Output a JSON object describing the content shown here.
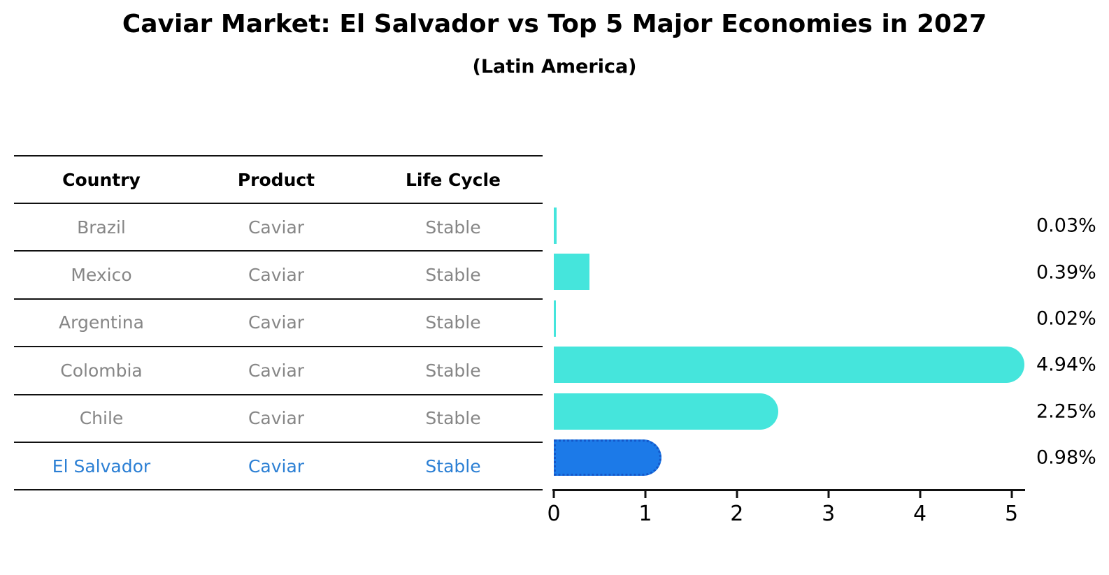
{
  "title": "Caviar Market: El Salvador vs Top 5 Major Economies in 2027",
  "subtitle": "(Latin America)",
  "table": {
    "headers": [
      "Country",
      "Product",
      "Life Cycle"
    ],
    "rows": [
      {
        "country": "Brazil",
        "product": "Caviar",
        "life_cycle": "Stable",
        "highlight": false
      },
      {
        "country": "Mexico",
        "product": "Caviar",
        "life_cycle": "Stable",
        "highlight": false
      },
      {
        "country": "Argentina",
        "product": "Caviar",
        "life_cycle": "Stable",
        "highlight": false
      },
      {
        "country": "Colombia",
        "product": "Caviar",
        "life_cycle": "Stable",
        "highlight": false
      },
      {
        "country": "Chile",
        "product": "Caviar",
        "life_cycle": "Stable",
        "highlight": false
      },
      {
        "country": "El Salvador",
        "product": "Caviar",
        "life_cycle": "Stable",
        "highlight": true
      }
    ]
  },
  "chart_data": {
    "type": "bar",
    "orientation": "horizontal",
    "title": "Caviar Market: El Salvador vs Top 5 Major Economies in 2027",
    "subtitle": "(Latin America)",
    "categories": [
      "Brazil",
      "Mexico",
      "Argentina",
      "Colombia",
      "Chile",
      "El Salvador"
    ],
    "values": [
      0.03,
      0.39,
      0.02,
      4.94,
      2.25,
      0.98
    ],
    "value_labels": [
      "0.03%",
      "0.39%",
      "0.02%",
      "4.94%",
      "2.25%",
      "0.98%"
    ],
    "x_ticks": [
      "0",
      "1",
      "2",
      "3",
      "4",
      "5"
    ],
    "xlim": [
      0,
      5.15
    ],
    "grid": false,
    "legend": false,
    "bar_color": "#45E5DC",
    "highlight_bar_color": "#1C7AE8",
    "highlight_border_color": "#1457C9",
    "highlight_index": 5
  },
  "colors": {
    "background": "#FFFFFF",
    "text": "#000000",
    "muted_row_text": "#868686",
    "highlight_text": "#2B7FD4",
    "line": "#111111"
  }
}
